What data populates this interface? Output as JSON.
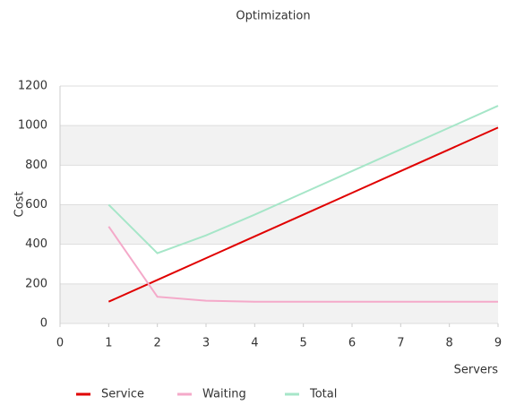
{
  "chart_data": {
    "type": "line",
    "title": "Optimization",
    "x_label": "Servers",
    "y_label": "Cost",
    "x": [
      1,
      2,
      3,
      4,
      5,
      6,
      7,
      8,
      9
    ],
    "series": [
      {
        "name": "Service",
        "color": "#e00000",
        "values": [
          110,
          220,
          330,
          440,
          550,
          660,
          770,
          880,
          990
        ]
      },
      {
        "name": "Waiting",
        "color": "#f4a9c9",
        "values": [
          490,
          135,
          115,
          110,
          110,
          110,
          110,
          110,
          110
        ]
      },
      {
        "name": "Total",
        "color": "#a6e6c8",
        "values": [
          600,
          355,
          445,
          550,
          660,
          770,
          880,
          990,
          1100
        ]
      }
    ],
    "xlim": [
      0,
      9
    ],
    "xticks": [
      0,
      1,
      2,
      3,
      4,
      5,
      6,
      7,
      8,
      9
    ],
    "ylim": [
      0,
      1200
    ],
    "yticks": [
      0,
      200,
      400,
      600,
      800,
      1000,
      1200
    ],
    "grid": true,
    "legend": "bottom"
  }
}
